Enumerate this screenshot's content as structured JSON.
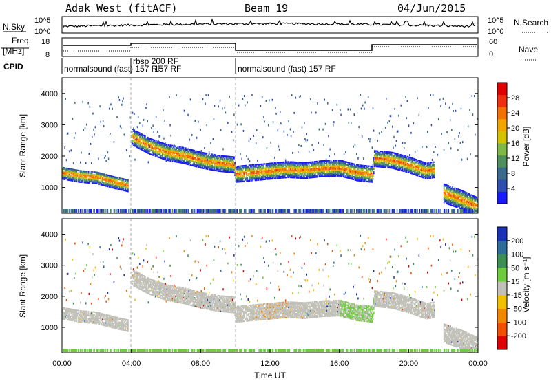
{
  "header": {
    "station": "Adak West (fitACF)",
    "beam": "Beam 19",
    "date": "04/Jun/2015"
  },
  "summary_panels": {
    "nsky_label": "N.Sky",
    "nsky_ticks": [
      "10^5",
      "10^0"
    ],
    "nsearch_label": "N.Search",
    "freq_label_1": "Freq.",
    "freq_label_2": "[MHz]",
    "freq_ticks": [
      "18",
      "8"
    ],
    "nave_label": "Nave",
    "nave_ticks": [
      "60",
      "0"
    ],
    "cpid_label": "CPID",
    "cpid_segments": [
      "normalsound (fast) 157 RF",
      "rbsp 200 RF",
      "normalsound (fast) 157 RF"
    ],
    "rbsp_label_2": "157 RF"
  },
  "colors": {
    "ground": "#a8a8a8",
    "grid_dash": "#999999",
    "power_scale": [
      "#1a1aff",
      "#2e4fae",
      "#3a6b8a",
      "#4f8f5c",
      "#7fb845",
      "#d4c200",
      "#f2a400",
      "#f07000",
      "#ee3010",
      "#e00000"
    ],
    "velocity_scale": [
      "#1a32b4",
      "#2e6d9a",
      "#3c8f50",
      "#6ecb3c",
      "#c0c0b8",
      "#f0c000",
      "#f08800",
      "#f05000",
      "#e00000"
    ]
  },
  "chart_data": [
    {
      "type": "heatmap",
      "panel": "power",
      "xlabel": "",
      "ylabel": "Slant Range [km]",
      "yticks": [
        "4000",
        "3000",
        "2000",
        "1000"
      ],
      "ylim": [
        180,
        4500
      ],
      "xlim_hours": [
        0,
        24
      ],
      "colorbar_label": "Power [dB]",
      "colorbar_ticks": [
        "28",
        "24",
        "20",
        "16",
        "12",
        "8",
        "4"
      ],
      "colorbar_range": [
        0,
        32
      ],
      "features": [
        {
          "name": "main-echo",
          "x_hours": [
            4.0,
            5.0,
            6.0,
            7.0,
            8.0,
            9.0,
            9.9,
            10.0,
            11.0,
            12.0,
            13.0,
            14.0,
            15.0,
            16.0,
            17.0,
            17.9,
            18.0,
            19.0,
            20.0,
            21.0,
            21.5
          ],
          "y_km": [
            2600,
            2300,
            2100,
            2000,
            1850,
            1750,
            1700,
            1400,
            1450,
            1500,
            1550,
            1520,
            1580,
            1600,
            1450,
            1400,
            1900,
            1850,
            1700,
            1500,
            1550
          ],
          "width_km": 250
        },
        {
          "name": "lower-band",
          "x_hours": [
            0.0,
            1.0,
            2.0,
            3.0,
            3.8
          ],
          "y_km": [
            1450,
            1350,
            1300,
            1150,
            1050
          ],
          "width_km": 200
        },
        {
          "name": "late-echo",
          "x_hours": [
            22.0,
            23.0,
            24.0
          ],
          "y_km": [
            800,
            600,
            350
          ],
          "width_km": 300
        }
      ]
    },
    {
      "type": "heatmap",
      "panel": "velocity",
      "xlabel": "Time UT",
      "ylabel": "Slant Range [km]",
      "yticks": [
        "4000",
        "3000",
        "2000",
        "1000"
      ],
      "ylim": [
        180,
        4500
      ],
      "xticks": [
        "00:00",
        "04:00",
        "08:00",
        "12:00",
        "16:00",
        "20:00",
        "00:00"
      ],
      "xlim_hours": [
        0,
        24
      ],
      "colorbar_label": "Velocity [m s⁻¹]",
      "colorbar_ticks": [
        "200",
        "100",
        "50",
        "15",
        "-15",
        "-50",
        "-100",
        "-200"
      ],
      "colorbar_range": [
        -250,
        250
      ]
    }
  ]
}
